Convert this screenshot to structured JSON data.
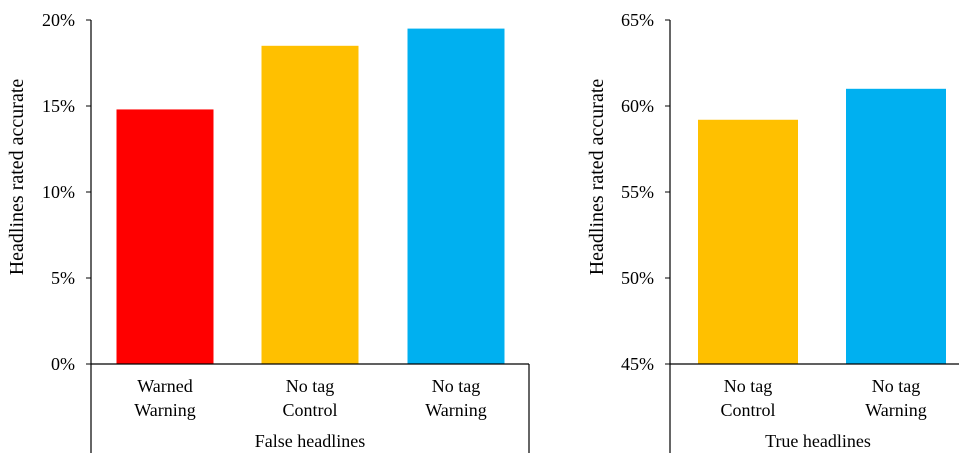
{
  "chart_data": [
    {
      "type": "bar",
      "group_label": "False headlines",
      "ylabel": "Headlines rated accurate",
      "ylim": [
        0,
        20
      ],
      "yticks": [
        "0%",
        "5%",
        "10%",
        "15%",
        "20%"
      ],
      "categories": [
        [
          "Warned",
          "Warning"
        ],
        [
          "No tag",
          "Control"
        ],
        [
          "No tag",
          "Warning"
        ]
      ],
      "values": [
        14.8,
        18.5,
        19.5
      ],
      "colors": [
        "#ff0000",
        "#ffc000",
        "#00b0f0"
      ],
      "grid": false,
      "legend": "none"
    },
    {
      "type": "bar",
      "group_label": "True headlines",
      "ylabel": "Headlines rated accurate",
      "ylim": [
        45,
        65
      ],
      "yticks": [
        "45%",
        "50%",
        "55%",
        "60%",
        "65%"
      ],
      "categories": [
        [
          "No tag",
          "Control"
        ],
        [
          "No tag",
          "Warning"
        ]
      ],
      "values": [
        59.2,
        61.0
      ],
      "colors": [
        "#ffc000",
        "#00b0f0"
      ],
      "grid": false,
      "legend": "none"
    }
  ]
}
